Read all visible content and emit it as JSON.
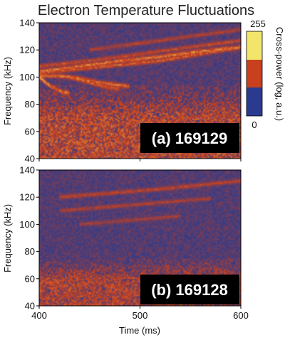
{
  "chart_data": {
    "type": "heatmap",
    "title": "Electron Temperature Fluctuations",
    "xlabel": "Time (ms)",
    "ylabel": "Frequency (kHz)",
    "xlim": [
      400,
      600
    ],
    "ylim": [
      40,
      140
    ],
    "x_ticks": [
      "400",
      "500",
      "600"
    ],
    "y_ticks": [
      "40",
      "60",
      "80",
      "100",
      "120",
      "140"
    ],
    "colorbar": {
      "label": "Cross-power (log, a.u.)",
      "min_label": "0",
      "max_label": "255",
      "range": [
        0,
        255
      ],
      "levels": [
        {
          "from": 0,
          "to": 85,
          "color": "#2a3b8f"
        },
        {
          "from": 85,
          "to": 170,
          "color": "#c8401e"
        },
        {
          "from": 170,
          "to": 255,
          "color": "#f3e56a"
        }
      ]
    },
    "panels": [
      {
        "label": "(a) 169129",
        "background_level": 40,
        "broadband": {
          "f_top_kHz": 95,
          "f_fade_kHz": 70,
          "level": 150
        },
        "modes": [
          {
            "t": [
              400,
              440,
              480,
              520,
              560,
              600
            ],
            "f": [
              104,
              108,
              112,
              115,
              119,
              122
            ],
            "level": 200
          },
          {
            "t": [
              400,
              440,
              480,
              520,
              560,
              600
            ],
            "f": [
              103,
              106,
              109,
              112,
              117,
              122
            ],
            "level": 170
          },
          {
            "t": [
              400,
              450,
              500,
              550,
              600
            ],
            "f": [
              108,
              112,
              117,
              122,
              127
            ],
            "level": 150
          },
          {
            "t": [
              450,
              500,
              550,
              600
            ],
            "f": [
              120,
              125,
              130,
              135
            ],
            "level": 130
          },
          {
            "t": [
              400,
              410,
              420,
              430
            ],
            "f": [
              100,
              94,
              90,
              88
            ],
            "level": 210
          },
          {
            "t": [
              400,
              420,
              440,
              460,
              480,
              490
            ],
            "f": [
              101,
              101,
              99,
              96,
              94,
              93
            ],
            "level": 190
          },
          {
            "t": [
              430,
              450,
              465,
              480
            ],
            "f": [
              100,
              96,
              93,
              91
            ],
            "level": 175
          }
        ]
      },
      {
        "label": "(b) 169128",
        "background_level": 40,
        "broadband": {
          "f_top_kHz": 75,
          "f_fade_kHz": 60,
          "level": 135
        },
        "modes": [
          {
            "t": [
              420,
              470,
              520,
              560,
              600
            ],
            "f": [
              120,
              123,
              126,
              129,
              132
            ],
            "level": 140
          },
          {
            "t": [
              420,
              470,
              520,
              570
            ],
            "f": [
              110,
              113,
              116,
              119
            ],
            "level": 125
          },
          {
            "t": [
              440,
              490,
              540
            ],
            "f": [
              100,
              103,
              106
            ],
            "level": 115
          }
        ]
      }
    ]
  }
}
